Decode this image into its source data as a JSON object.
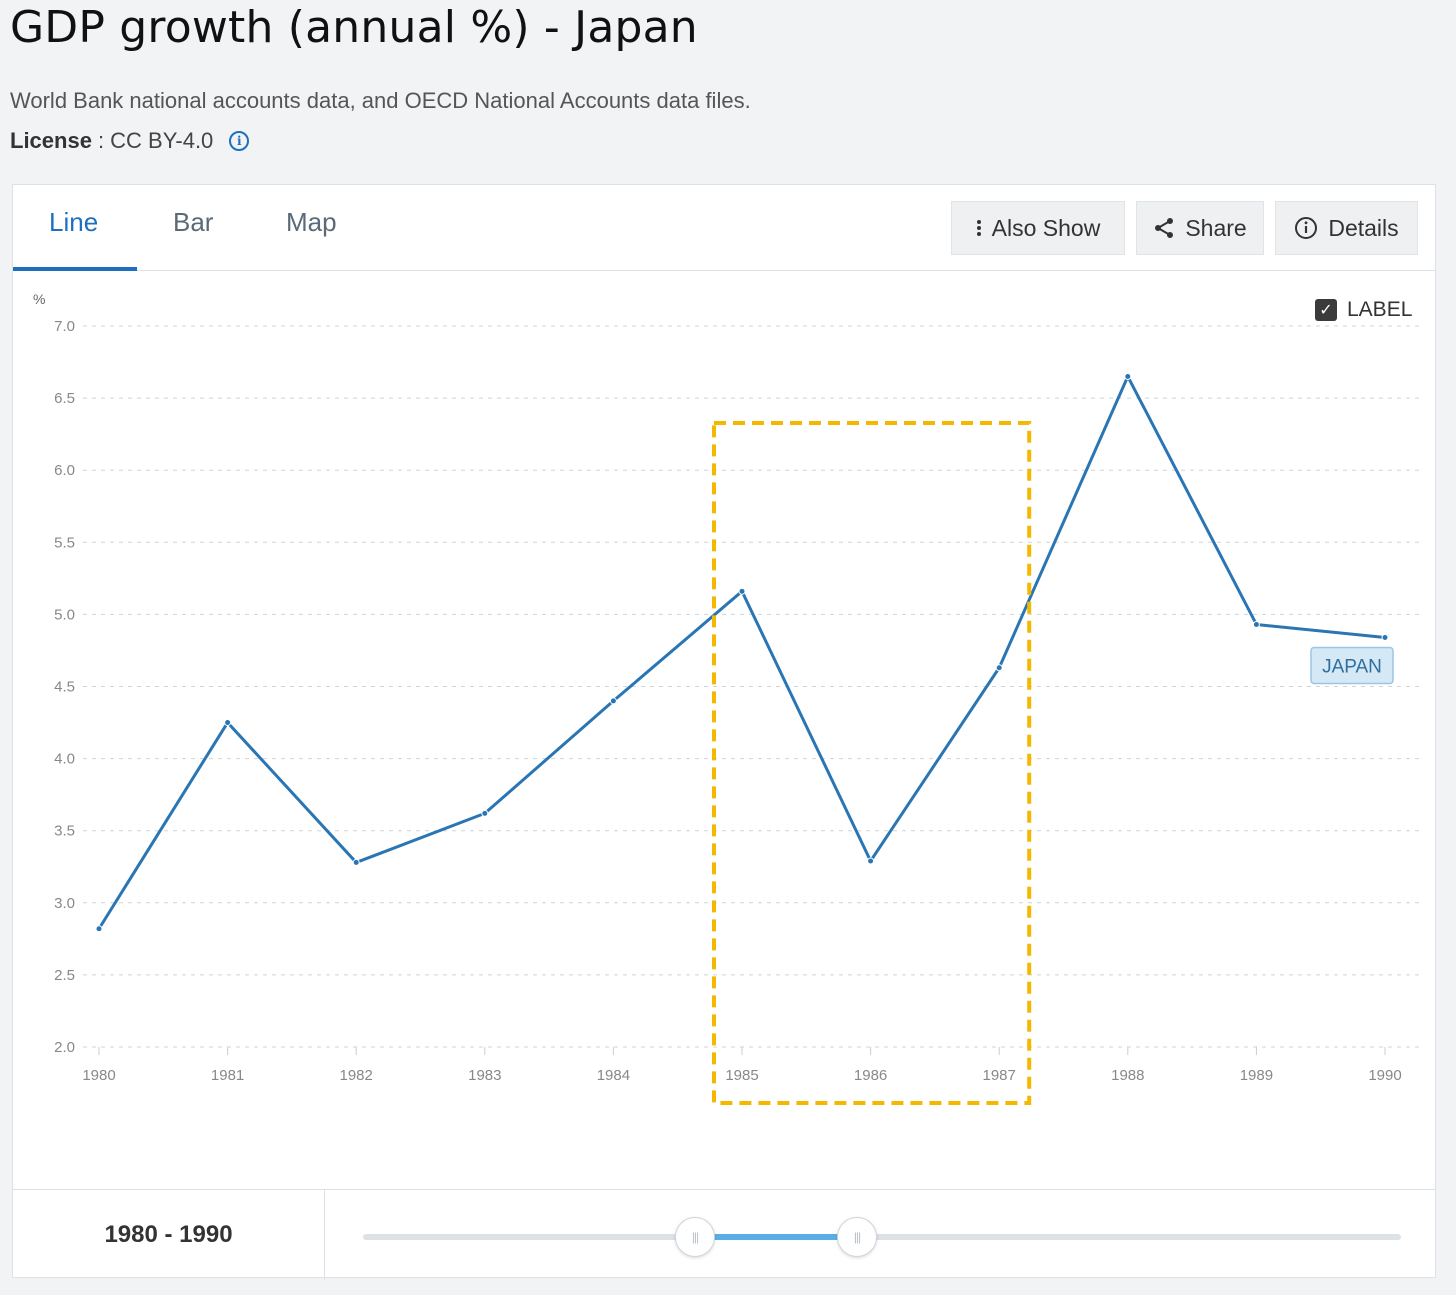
{
  "page": {
    "title": "GDP growth (annual %) - Japan",
    "source": "World Bank national accounts data, and OECD National Accounts data files.",
    "license_label": "License",
    "license_value": " : CC BY-4.0"
  },
  "tabs": [
    {
      "label": "Line",
      "active": true
    },
    {
      "label": "Bar",
      "active": false
    },
    {
      "label": "Map",
      "active": false
    }
  ],
  "toolbar": {
    "also_show": "Also Show",
    "share": "Share",
    "details": "Details"
  },
  "label_toggle": {
    "text": "LABEL",
    "checked": true
  },
  "footer": {
    "range_text": "1980 - 1990"
  },
  "colors": {
    "line": "#2a75b3",
    "highlight": "#f5b800",
    "accent": "#1f6fbf"
  },
  "chart_data": {
    "type": "line",
    "ylabel": "%",
    "ylim": [
      2.0,
      7.0
    ],
    "yticks": [
      "2.0",
      "2.5",
      "3.0",
      "3.5",
      "4.0",
      "4.5",
      "5.0",
      "5.5",
      "6.0",
      "6.5",
      "7.0"
    ],
    "x": [
      "1980",
      "1981",
      "1982",
      "1983",
      "1984",
      "1985",
      "1986",
      "1987",
      "1988",
      "1989",
      "1990"
    ],
    "series": [
      {
        "name": "JAPAN",
        "values": [
          2.82,
          4.25,
          3.28,
          3.62,
          4.4,
          5.16,
          3.29,
          4.63,
          6.65,
          4.93,
          4.84
        ]
      }
    ],
    "grid": true,
    "highlight_range": [
      "1985",
      "1987"
    ]
  }
}
